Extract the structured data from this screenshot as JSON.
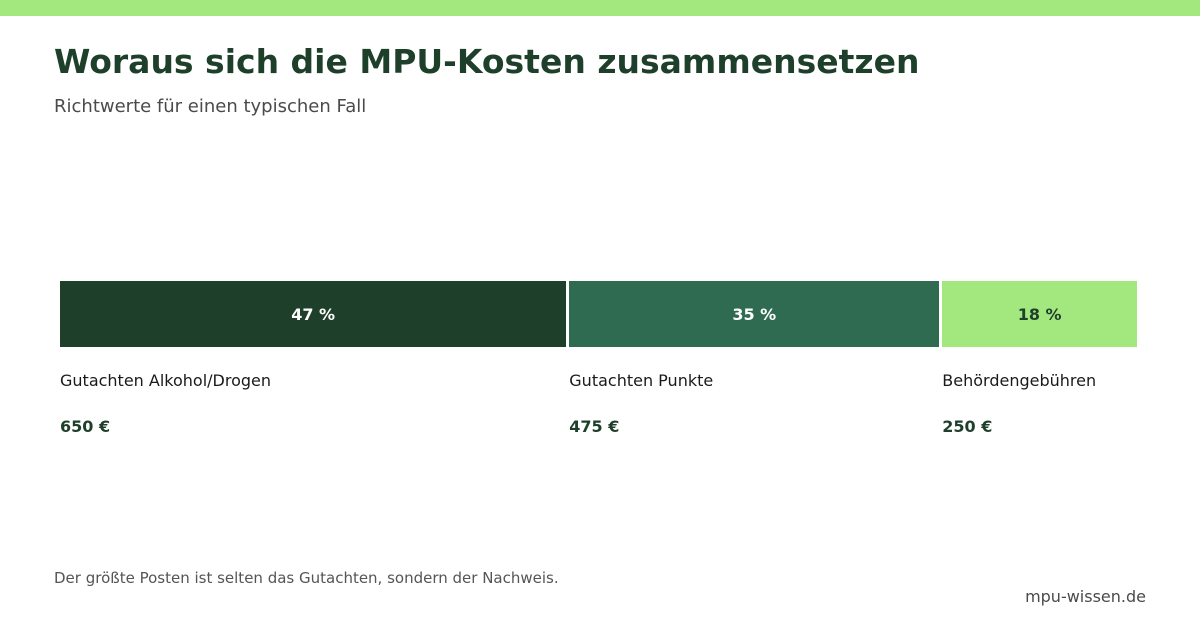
{
  "colors": {
    "accent_bar": "#a3e77f",
    "title": "#1e3f2a",
    "value_text": "#1e3f2a"
  },
  "header": {
    "title": "Woraus sich die MPU-Kosten zusammensetzen",
    "subtitle": "Richtwerte für einen typischen Fall"
  },
  "chart_data": {
    "type": "bar",
    "orientation": "horizontal-stacked",
    "categories": [
      "Gutachten Alkohol/Drogen",
      "Gutachten Punkte",
      "Behördengebühren"
    ],
    "values": [
      650,
      475,
      250
    ],
    "percent": [
      47,
      35,
      18
    ],
    "percent_labels": [
      "47 %",
      "35 %",
      "18 %"
    ],
    "value_labels": [
      "650 €",
      "475 €",
      "250 €"
    ],
    "colors": [
      "#1e3f2a",
      "#2e6b51",
      "#a3e77f"
    ],
    "text_colors": [
      "#ffffff",
      "#ffffff",
      "#1e3f2a"
    ],
    "grid": false,
    "legend": "none"
  },
  "footer": {
    "note": "Der größte Posten ist selten das Gutachten, sondern der Nachweis.",
    "source": "mpu-wissen.de"
  }
}
